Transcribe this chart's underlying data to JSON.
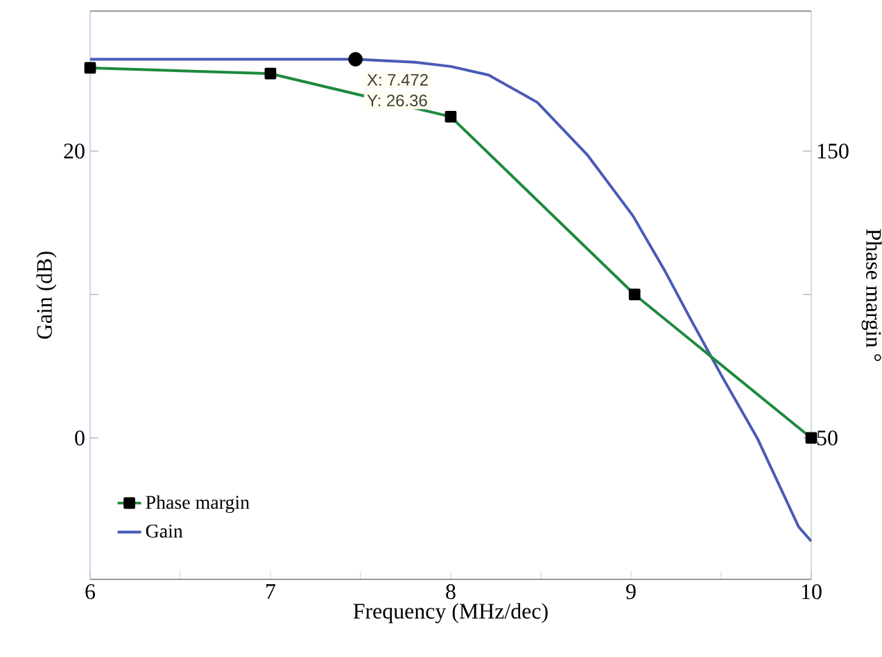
{
  "chart_data": {
    "type": "line",
    "xlabel": "Frequency (MHz/dec)",
    "ylabel": "Gain (dB)",
    "y2label": "Phase margin °",
    "xlim": [
      6,
      10
    ],
    "xticks": [
      6,
      {
        "value": 6.5,
        "label": null
      },
      7,
      {
        "value": 7.5,
        "label": null
      },
      8,
      {
        "value": 8.5,
        "label": null
      },
      9,
      {
        "value": 9.5,
        "label": null
      },
      10
    ],
    "ylim": [
      -9.86,
      29.76
    ],
    "yticks": [
      0,
      {
        "value": 10,
        "label": null
      },
      20
    ],
    "y2lim": [
      0.7,
      198.8
    ],
    "y2ticks": [
      50,
      {
        "value": 100,
        "label": null
      },
      150
    ],
    "legend": "bottom left",
    "grid": false,
    "series": [
      {
        "name": "Phase margin",
        "axis": "y2",
        "color": "#1e8a3c",
        "marker": "square",
        "x": [
          6,
          7,
          8,
          9.02,
          10
        ],
        "values": [
          179,
          177,
          162,
          100,
          50
        ]
      },
      {
        "name": "Gain",
        "color": "#4a5bb5",
        "marker": "none",
        "x": [
          6,
          7,
          7.472,
          7.8,
          8,
          8.21,
          8.48,
          8.76,
          9.01,
          9.19,
          9.33,
          9.5,
          9.7,
          9.93,
          10
        ],
        "values": [
          26.4,
          26.4,
          26.4,
          26.2,
          25.9,
          25.3,
          23.4,
          19.7,
          15.5,
          11.6,
          8.3,
          4.4,
          0,
          -6.2,
          -7.2
        ]
      },
      {
        "type": "scatter",
        "color": "#000000",
        "marker": "circle",
        "x": [
          7.472
        ],
        "values": [
          26.4
        ]
      }
    ],
    "annotations": [
      {
        "text": "X: 7.472",
        "x": 7.472,
        "y": 26.36
      },
      {
        "text": "Y: 26.36",
        "x": 7.472,
        "y": 26.36
      }
    ]
  }
}
